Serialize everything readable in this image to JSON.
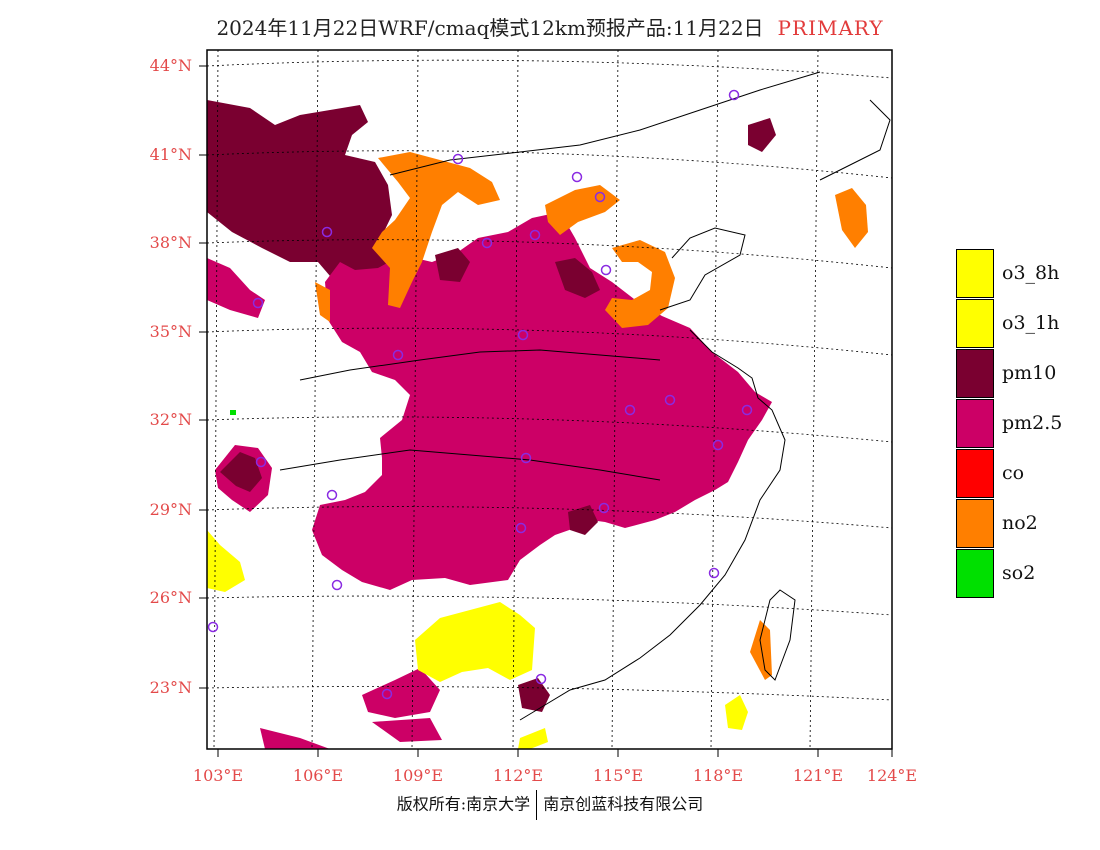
{
  "title": {
    "main": "2024年11月22日WRF/cmaq模式12km预报产品:11月22日",
    "tag": "PRIMARY"
  },
  "map": {
    "lat_ticks": [
      "44°N",
      "41°N",
      "38°N",
      "35°N",
      "32°N",
      "29°N",
      "26°N",
      "23°N"
    ],
    "lon_ticks": [
      "103°E",
      "106°E",
      "109°E",
      "112°E",
      "115°E",
      "118°E",
      "121°E",
      "124°E"
    ],
    "colors": {
      "o3_8h": "#ffff00",
      "o3_1h": "#ffff00",
      "pm10": "#7a0030",
      "pm25": "#cc0066",
      "co": "#ff0000",
      "no2": "#ff7f00",
      "so2": "#00e000"
    }
  },
  "legend": {
    "items": [
      {
        "label": "o3_8h",
        "color": "#ffff00"
      },
      {
        "label": "o3_1h",
        "color": "#ffff00"
      },
      {
        "label": "pm10",
        "color": "#7a0030"
      },
      {
        "label": "pm2.5",
        "color": "#cc0066"
      },
      {
        "label": "co",
        "color": "#ff0000"
      },
      {
        "label": "no2",
        "color": "#ff7f00"
      },
      {
        "label": "so2",
        "color": "#00e000"
      }
    ]
  },
  "footer": {
    "left": "版权所有:南京大学",
    "right": "南京创蓝科技有限公司"
  }
}
